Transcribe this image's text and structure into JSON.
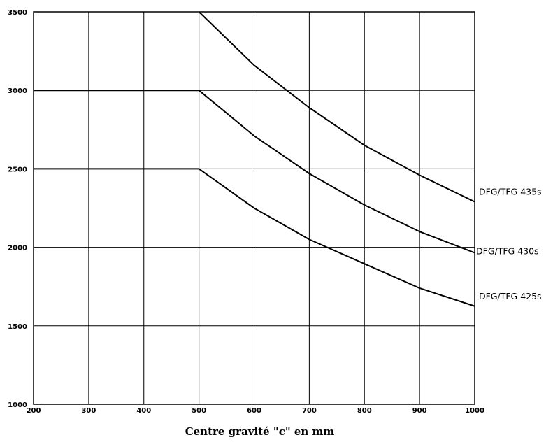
{
  "chart_data": {
    "type": "line",
    "title": "",
    "xlabel": "Centre gravité \"c\" en mm",
    "ylabel": "",
    "xlim": [
      200,
      1000
    ],
    "ylim": [
      1000,
      3500
    ],
    "xticks": [
      200,
      300,
      400,
      500,
      600,
      700,
      800,
      900,
      1000
    ],
    "yticks": [
      1000,
      1500,
      2000,
      2500,
      3000,
      3500
    ],
    "grid": true,
    "line_color": "#000000",
    "series": [
      {
        "name": "DFG/TFG 435s",
        "x": [
          500,
          600,
          700,
          800,
          900,
          1000
        ],
        "y": [
          3500,
          3160,
          2890,
          2650,
          2460,
          2290
        ]
      },
      {
        "name": "DFG/TFG 430s",
        "x": [
          200,
          500,
          600,
          700,
          800,
          900,
          1000
        ],
        "y": [
          3000,
          3000,
          2710,
          2470,
          2270,
          2100,
          1965
        ]
      },
      {
        "name": "DFG/TFG 425s",
        "x": [
          200,
          500,
          600,
          700,
          800,
          900,
          1000
        ],
        "y": [
          2500,
          2500,
          2250,
          2050,
          1895,
          1740,
          1625
        ]
      }
    ]
  }
}
